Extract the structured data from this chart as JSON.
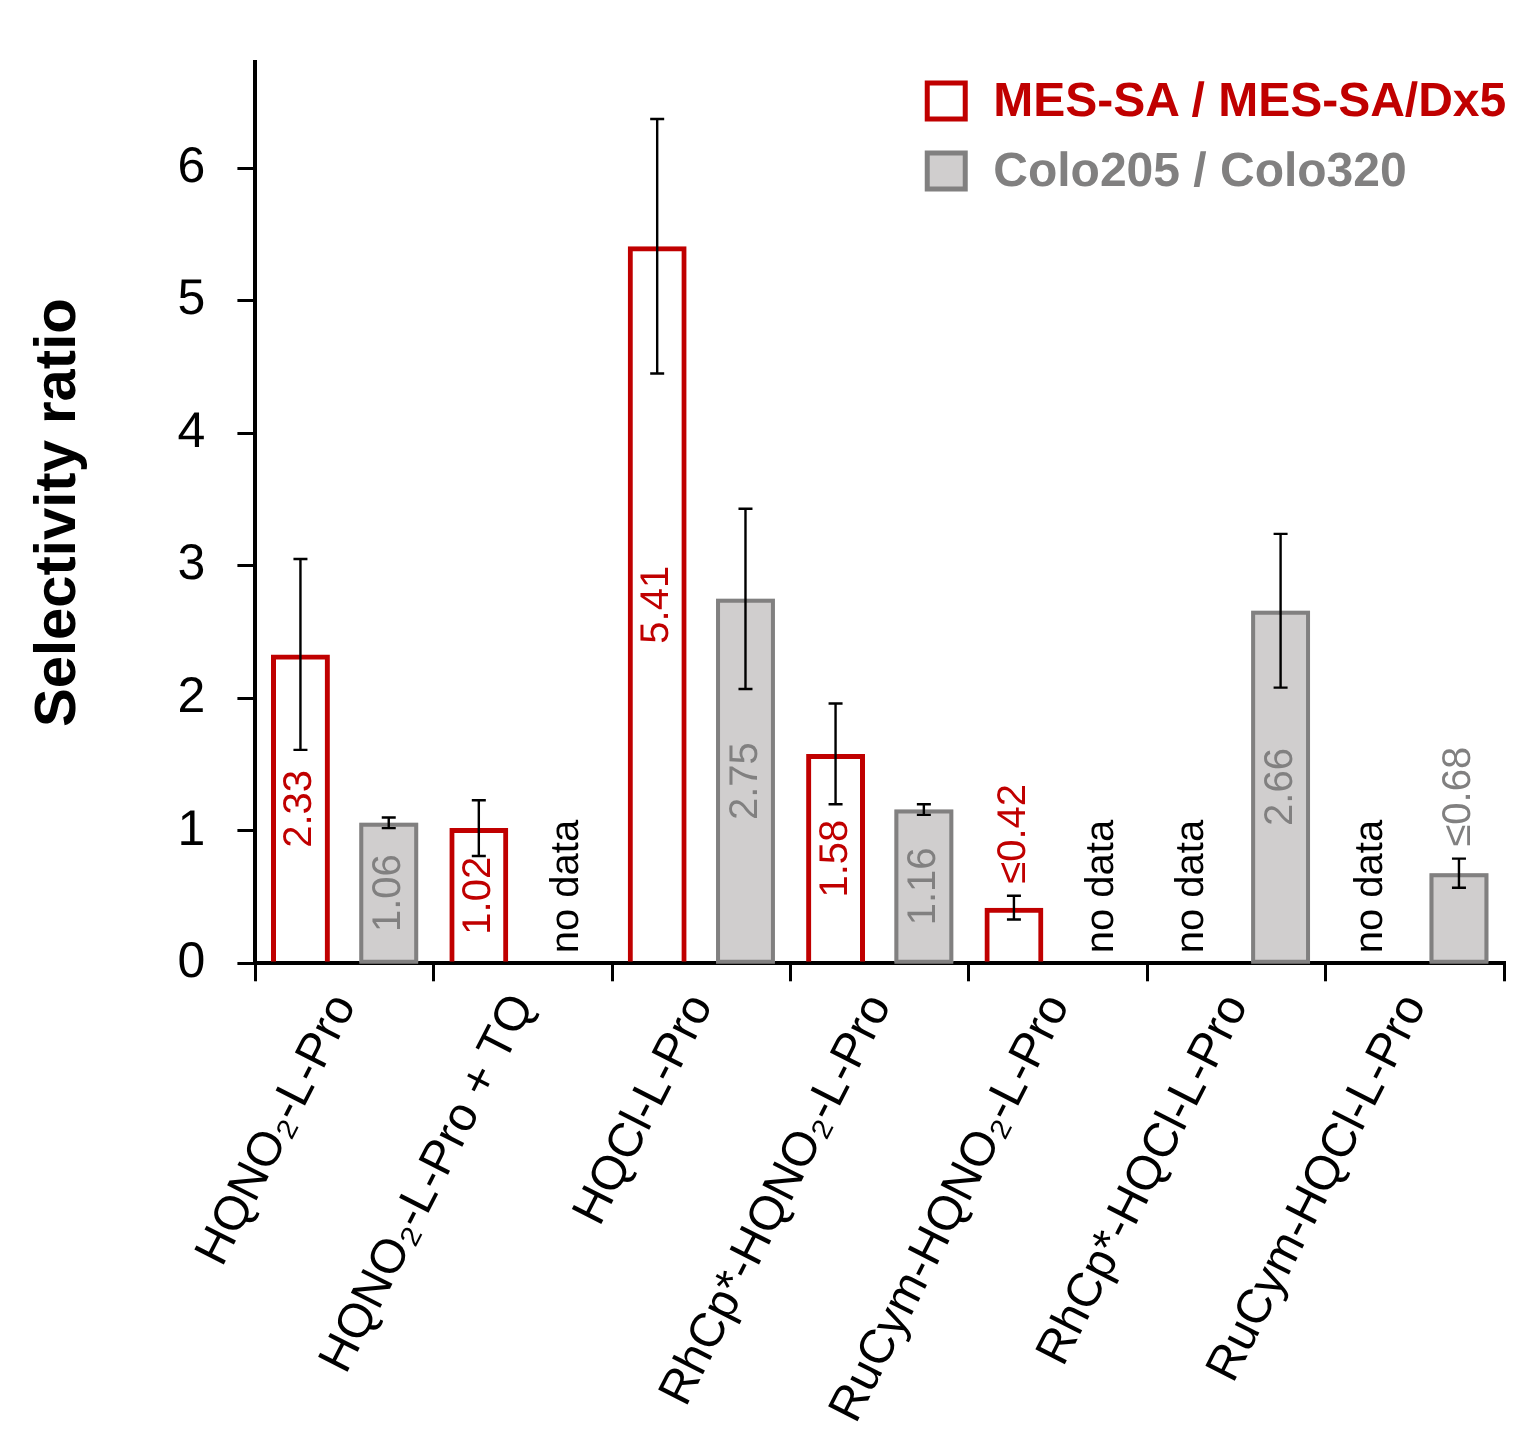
{
  "chart_data": {
    "type": "bar",
    "ylabel": "Selectivity ratio",
    "categories": [
      "HQNO₂-L-Pro",
      "HQNO₂-L-Pro + TQ",
      "HQCl-L-Pro",
      "RhCp*-HQNO₂-L-Pro",
      "RuCym-HQNO₂-L-Pro",
      "RhCp*-HQCl-L-Pro",
      "RuCym-HQCl-L-Pro"
    ],
    "series": [
      {
        "name": "MES-SA / MES-SA/Dx5",
        "color": "#c00000",
        "values": [
          2.33,
          1.02,
          5.41,
          1.58,
          0.42,
          null,
          null
        ],
        "errors": [
          0.72,
          0.21,
          0.96,
          0.38,
          0.09,
          null,
          null
        ],
        "value_labels": [
          "2.33",
          "1.02",
          "5.41",
          "1.58",
          "≤0.42",
          "no data",
          "no data"
        ]
      },
      {
        "name": "Colo205 / Colo320",
        "color": "#d0cece",
        "values": [
          1.06,
          null,
          2.75,
          1.16,
          null,
          2.66,
          0.68
        ],
        "errors": [
          0.04,
          null,
          0.68,
          0.04,
          null,
          0.58,
          0.11
        ],
        "value_labels": [
          "1.06",
          "no data",
          "2.75",
          "1.16",
          "no data",
          "2.66",
          "≤0.68"
        ]
      }
    ],
    "ylim": [
      0,
      6.8
    ],
    "yticks": [
      0,
      1,
      2,
      3,
      4,
      5,
      6
    ],
    "legend": "top right"
  }
}
